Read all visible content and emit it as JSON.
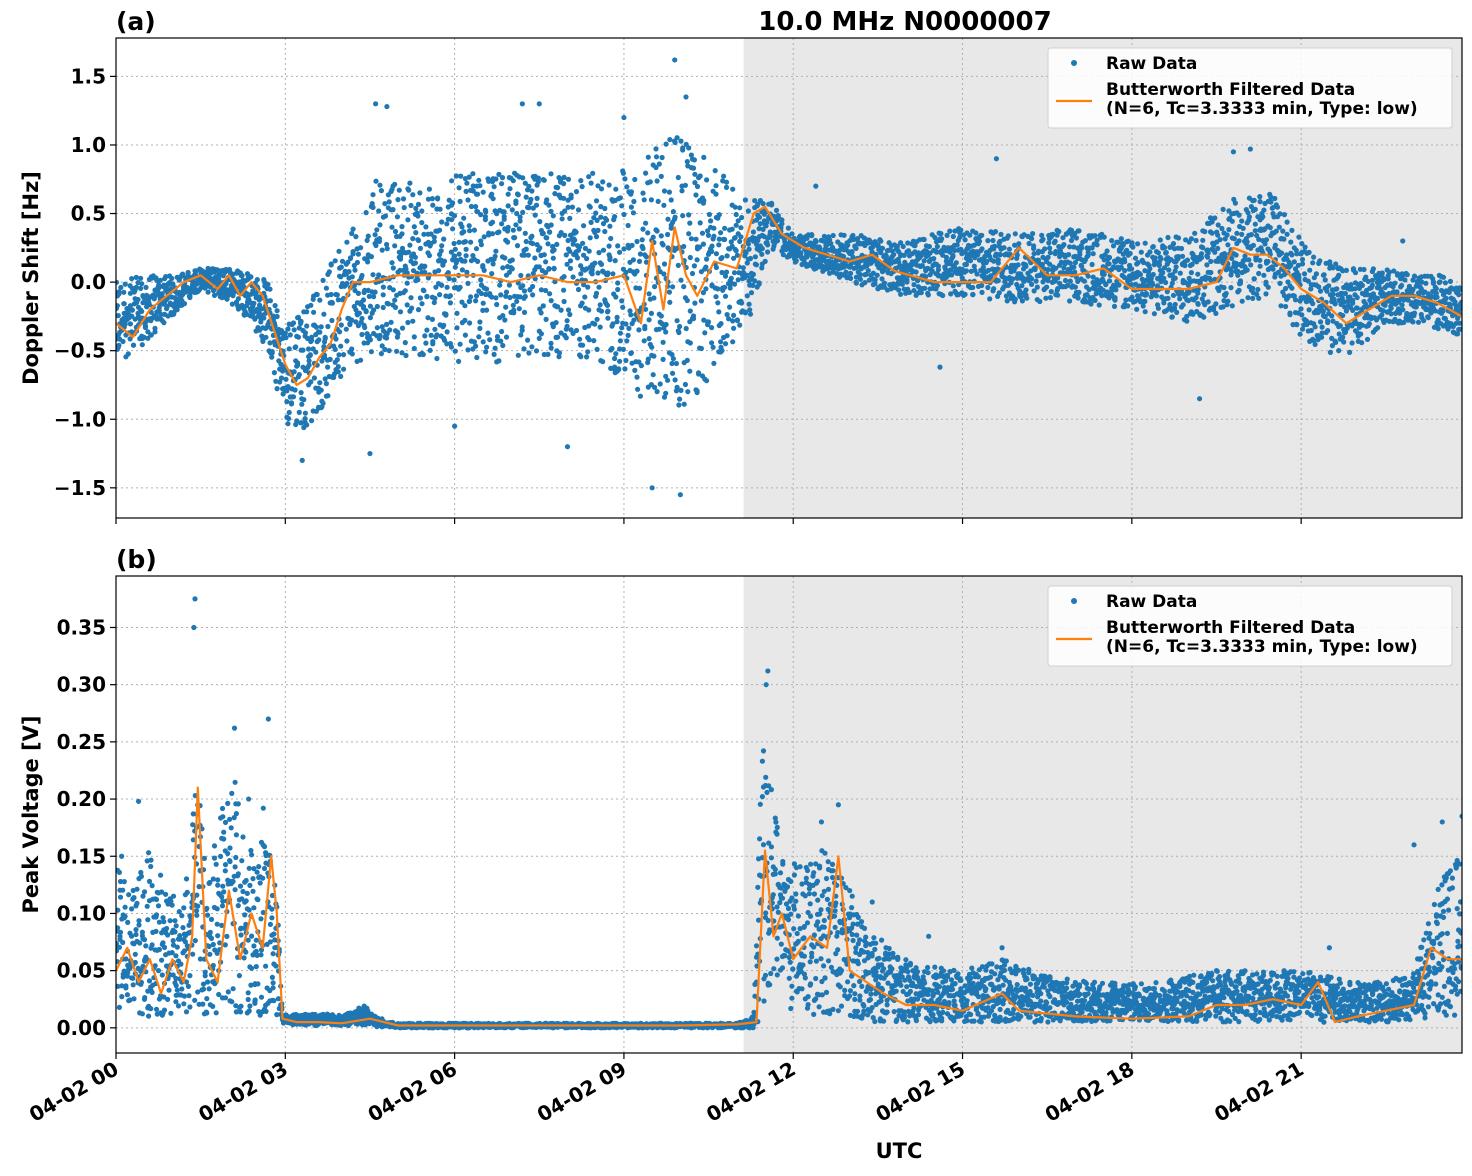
{
  "chart_data": [
    {
      "type": "scatter",
      "panel_label": "(a)",
      "title": "10.0 MHz N0000007",
      "xlabel": "",
      "ylabel": "Doppler Shift [Hz]",
      "xlim": [
        0,
        23.85
      ],
      "ylim": [
        -1.72,
        1.78
      ],
      "yticks": [
        -1.5,
        -1.0,
        -0.5,
        0.0,
        0.5,
        1.0,
        1.5
      ],
      "ytick_labels": [
        "−1.5",
        "−1.0",
        "−0.5",
        "0.0",
        "0.5",
        "1.0",
        "1.5"
      ],
      "shaded_x_range": [
        11.12,
        23.85
      ],
      "grid": true,
      "legend_position": "top-right",
      "series": [
        {
          "name": "Raw Data",
          "kind": "scatter",
          "color": "#1f77b4",
          "envelope_x": [
            0,
            0.5,
            1,
            1.5,
            2,
            2.3,
            2.7,
            3,
            3.3,
            3.7,
            4.1,
            4.6,
            5.5,
            6.5,
            7.5,
            8.5,
            9.3,
            9.8,
            10.3,
            10.8,
            11.2,
            11.6,
            12,
            13,
            14,
            15,
            16,
            17,
            18,
            19,
            19.7,
            20.5,
            21,
            21.5,
            22,
            22.5,
            23,
            23.5,
            23.85
          ],
          "envelope_low": [
            -0.6,
            -0.45,
            -0.25,
            -0.05,
            -0.15,
            -0.25,
            -0.5,
            -1.05,
            -1.1,
            -0.9,
            -0.6,
            -0.55,
            -0.55,
            -0.6,
            -0.55,
            -0.55,
            -0.9,
            -0.9,
            -0.9,
            -0.5,
            -0.3,
            0.25,
            0.15,
            0.0,
            -0.1,
            -0.1,
            -0.15,
            -0.15,
            -0.2,
            -0.3,
            -0.2,
            -0.1,
            -0.4,
            -0.55,
            -0.5,
            -0.3,
            -0.3,
            -0.35,
            -0.4
          ],
          "envelope_high": [
            0.0,
            0.05,
            0.05,
            0.1,
            0.1,
            0.1,
            0.0,
            -0.3,
            -0.2,
            0.1,
            0.3,
            0.75,
            0.75,
            0.8,
            0.8,
            0.8,
            0.85,
            1.1,
            0.95,
            0.8,
            0.6,
            0.6,
            0.35,
            0.35,
            0.3,
            0.4,
            0.35,
            0.4,
            0.3,
            0.35,
            0.6,
            0.65,
            0.3,
            0.15,
            0.1,
            0.1,
            0.05,
            0.05,
            -0.05
          ],
          "outliers": [
            [
              4.6,
              1.3
            ],
            [
              4.8,
              1.28
            ],
            [
              7.2,
              1.3
            ],
            [
              7.5,
              1.3
            ],
            [
              9.0,
              1.2
            ],
            [
              9.9,
              1.62
            ],
            [
              10.1,
              1.35
            ],
            [
              10.0,
              -1.55
            ],
            [
              9.5,
              -1.5
            ],
            [
              3.3,
              -1.3
            ],
            [
              4.5,
              -1.25
            ],
            [
              8.0,
              -1.2
            ],
            [
              6.0,
              -1.05
            ],
            [
              14.6,
              -0.62
            ],
            [
              19.2,
              -0.85
            ],
            [
              15.6,
              0.9
            ],
            [
              19.8,
              0.95
            ],
            [
              20.1,
              0.97
            ],
            [
              22.8,
              0.3
            ],
            [
              12.4,
              0.7
            ]
          ]
        },
        {
          "name": "Butterworth Filtered Data\n(N=6, Tc=3.3333 min, Type: low)",
          "kind": "line",
          "color": "#ff7f0e",
          "x": [
            0,
            0.3,
            0.6,
            0.9,
            1.2,
            1.5,
            1.8,
            2.0,
            2.2,
            2.4,
            2.6,
            2.8,
            3.0,
            3.2,
            3.4,
            3.6,
            3.8,
            4.0,
            4.2,
            4.5,
            5.0,
            5.5,
            6.0,
            6.5,
            7.0,
            7.5,
            8.0,
            8.5,
            9.0,
            9.3,
            9.5,
            9.7,
            9.9,
            10.1,
            10.3,
            10.6,
            11.0,
            11.3,
            11.5,
            11.8,
            12.2,
            12.6,
            13.0,
            13.4,
            13.8,
            14.5,
            15.0,
            15.5,
            16.0,
            16.5,
            17.0,
            17.5,
            18.0,
            18.5,
            19.0,
            19.5,
            19.8,
            20.1,
            20.4,
            20.7,
            21.0,
            21.4,
            21.8,
            22.2,
            22.6,
            23.0,
            23.4,
            23.85
          ],
          "y": [
            -0.3,
            -0.4,
            -0.2,
            -0.1,
            0.0,
            0.05,
            -0.05,
            0.05,
            -0.1,
            0.0,
            -0.1,
            -0.35,
            -0.6,
            -0.75,
            -0.7,
            -0.55,
            -0.45,
            -0.2,
            0.0,
            0.0,
            0.05,
            0.05,
            0.05,
            0.05,
            0.0,
            0.05,
            0.0,
            0.0,
            0.05,
            -0.3,
            0.3,
            -0.2,
            0.4,
            0.05,
            -0.1,
            0.15,
            0.1,
            0.5,
            0.55,
            0.35,
            0.25,
            0.2,
            0.15,
            0.2,
            0.08,
            0.0,
            0.0,
            0.0,
            0.25,
            0.05,
            0.05,
            0.1,
            -0.05,
            -0.05,
            -0.05,
            0.0,
            0.25,
            0.2,
            0.2,
            0.1,
            -0.05,
            -0.15,
            -0.3,
            -0.2,
            -0.1,
            -0.1,
            -0.15,
            -0.25
          ]
        }
      ]
    },
    {
      "type": "scatter",
      "panel_label": "(b)",
      "title": "",
      "xlabel": "UTC",
      "ylabel": "Peak Voltage [V]",
      "xlim": [
        0,
        23.85
      ],
      "ylim": [
        -0.022,
        0.395
      ],
      "yticks": [
        0.0,
        0.05,
        0.1,
        0.15,
        0.2,
        0.25,
        0.3,
        0.35
      ],
      "ytick_labels": [
        "0.00",
        "0.05",
        "0.10",
        "0.15",
        "0.20",
        "0.25",
        "0.30",
        "0.35"
      ],
      "xticks": [
        0,
        3,
        6,
        9,
        12,
        15,
        18,
        21
      ],
      "xtick_labels": [
        "04-02 00",
        "04-02 03",
        "04-02 06",
        "04-02 09",
        "04-02 12",
        "04-02 15",
        "04-02 18",
        "04-02 21"
      ],
      "shaded_x_range": [
        11.12,
        23.85
      ],
      "grid": true,
      "legend_position": "top-right",
      "series": [
        {
          "name": "Raw Data",
          "kind": "scatter",
          "color": "#1f77b4",
          "envelope_x": [
            0,
            0.3,
            0.6,
            0.9,
            1.2,
            1.4,
            1.6,
            1.9,
            2.1,
            2.3,
            2.5,
            2.7,
            2.85,
            2.95,
            3.5,
            4.0,
            4.4,
            4.6,
            5.0,
            11.0,
            11.3,
            11.45,
            11.6,
            11.8,
            12.2,
            12.6,
            13.0,
            13.5,
            14.0,
            15.0,
            15.7,
            16.5,
            17.5,
            18.5,
            19.5,
            20.5,
            21.0,
            21.5,
            22.0,
            22.5,
            23.0,
            23.5,
            23.85
          ],
          "envelope_low": [
            0.01,
            0.01,
            0.01,
            0.01,
            0.01,
            0.02,
            0.01,
            0.01,
            0.01,
            0.01,
            0.01,
            0.01,
            0.01,
            0.003,
            0.002,
            0.002,
            0.002,
            0.001,
            0.0,
            0.0,
            0.0,
            0.01,
            0.03,
            0.02,
            0.01,
            0.01,
            0.01,
            0.005,
            0.005,
            0.005,
            0.005,
            0.005,
            0.005,
            0.005,
            0.005,
            0.005,
            0.005,
            0.005,
            0.005,
            0.005,
            0.005,
            0.01,
            0.01
          ],
          "envelope_high": [
            0.14,
            0.12,
            0.16,
            0.12,
            0.11,
            0.25,
            0.13,
            0.2,
            0.22,
            0.16,
            0.16,
            0.22,
            0.12,
            0.012,
            0.012,
            0.012,
            0.02,
            0.01,
            0.004,
            0.004,
            0.01,
            0.25,
            0.22,
            0.15,
            0.14,
            0.16,
            0.12,
            0.08,
            0.06,
            0.05,
            0.06,
            0.045,
            0.04,
            0.04,
            0.05,
            0.05,
            0.05,
            0.045,
            0.04,
            0.04,
            0.05,
            0.14,
            0.15
          ],
          "outliers": [
            [
              1.4,
              0.375
            ],
            [
              1.38,
              0.35
            ],
            [
              2.1,
              0.262
            ],
            [
              2.7,
              0.27
            ],
            [
              0.4,
              0.198
            ],
            [
              2.35,
              0.2
            ],
            [
              11.55,
              0.312
            ],
            [
              11.52,
              0.3
            ],
            [
              12.8,
              0.195
            ],
            [
              12.5,
              0.18
            ],
            [
              13.0,
              0.12
            ],
            [
              13.4,
              0.11
            ],
            [
              14.4,
              0.08
            ],
            [
              15.7,
              0.07
            ],
            [
              19.5,
              0.05
            ],
            [
              21.5,
              0.07
            ],
            [
              23.0,
              0.16
            ],
            [
              23.85,
              0.185
            ],
            [
              23.5,
              0.18
            ],
            [
              0.1,
              0.15
            ]
          ]
        },
        {
          "name": "Butterworth Filtered Data\n(N=6, Tc=3.3333 min, Type: low)",
          "kind": "line",
          "color": "#ff7f0e",
          "x": [
            0,
            0.2,
            0.4,
            0.6,
            0.8,
            1.0,
            1.2,
            1.35,
            1.45,
            1.6,
            1.8,
            2.0,
            2.2,
            2.4,
            2.6,
            2.75,
            2.85,
            2.95,
            3.2,
            3.6,
            4.0,
            4.5,
            5.0,
            6.0,
            7.0,
            8.0,
            9.0,
            10.0,
            11.0,
            11.35,
            11.5,
            11.65,
            11.8,
            12.0,
            12.3,
            12.6,
            12.8,
            13.0,
            13.3,
            13.6,
            14.0,
            14.5,
            15.0,
            15.7,
            16.0,
            17.0,
            18.0,
            19.0,
            19.5,
            20.0,
            20.5,
            21.0,
            21.3,
            21.6,
            22.0,
            22.5,
            23.0,
            23.3,
            23.6,
            23.85
          ],
          "y": [
            0.05,
            0.07,
            0.04,
            0.06,
            0.03,
            0.06,
            0.04,
            0.08,
            0.21,
            0.06,
            0.04,
            0.12,
            0.06,
            0.1,
            0.07,
            0.15,
            0.1,
            0.008,
            0.005,
            0.005,
            0.004,
            0.008,
            0.002,
            0.002,
            0.002,
            0.002,
            0.002,
            0.002,
            0.003,
            0.005,
            0.155,
            0.08,
            0.1,
            0.06,
            0.08,
            0.07,
            0.15,
            0.05,
            0.04,
            0.03,
            0.02,
            0.02,
            0.015,
            0.03,
            0.015,
            0.01,
            0.008,
            0.01,
            0.02,
            0.02,
            0.025,
            0.02,
            0.04,
            0.005,
            0.01,
            0.015,
            0.02,
            0.07,
            0.06,
            0.06
          ]
        }
      ]
    }
  ]
}
